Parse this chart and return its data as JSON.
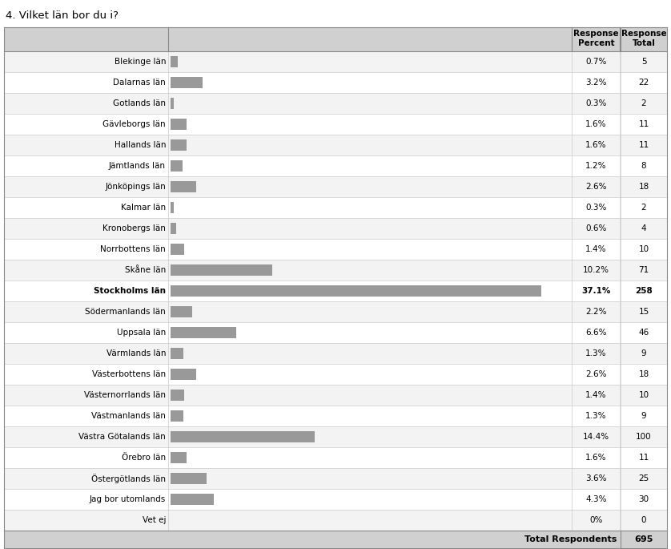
{
  "title": "4. Vilket län bor du i?",
  "categories": [
    "Blekinge län",
    "Dalarnas län",
    "Gotlands län",
    "Gävleborgs län",
    "Hallands län",
    "Jämtlands län",
    "Jönköpings län",
    "Kalmar län",
    "Kronobergs län",
    "Norrbottens län",
    "Skåne län",
    "Stockholms län",
    "Södermanlands län",
    "Uppsala län",
    "Värmlands län",
    "Västerbottens län",
    "Västernorrlands län",
    "Västmanlands län",
    "Västra Götalands län",
    "Örebro län",
    "Östergötlands län",
    "Jag bor utomlands",
    "Vet ej"
  ],
  "percents": [
    0.7,
    3.2,
    0.3,
    1.6,
    1.6,
    1.2,
    2.6,
    0.3,
    0.6,
    1.4,
    10.2,
    37.1,
    2.2,
    6.6,
    1.3,
    2.6,
    1.4,
    1.3,
    14.4,
    1.6,
    3.6,
    4.3,
    0.0
  ],
  "totals": [
    5,
    22,
    2,
    11,
    11,
    8,
    18,
    2,
    4,
    10,
    71,
    258,
    15,
    46,
    9,
    18,
    10,
    9,
    100,
    11,
    25,
    30,
    0
  ],
  "percent_labels": [
    "0.7%",
    "3.2%",
    "0.3%",
    "1.6%",
    "1.6%",
    "1.2%",
    "2.6%",
    "0.3%",
    "0.6%",
    "1.4%",
    "10.2%",
    "37.1%",
    "2.2%",
    "6.6%",
    "1.3%",
    "2.6%",
    "1.4%",
    "1.3%",
    "14.4%",
    "1.6%",
    "3.6%",
    "4.3%",
    "0%"
  ],
  "bold_row": "Stockholms län",
  "bar_color": "#999999",
  "total_respondents": 695,
  "title_fontsize": 9.5,
  "row_fontsize": 7.5,
  "header_fontsize": 7.5
}
